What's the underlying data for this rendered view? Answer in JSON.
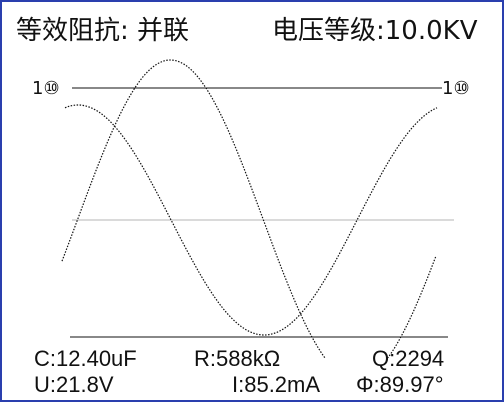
{
  "header": {
    "equivalent_impedance": "等效阻抗: 并联",
    "voltage_level": "电压等级:10.0KV"
  },
  "plot": {
    "left_scale_label": "1⑩",
    "right_scale_label": "1⑩"
  },
  "readout": {
    "capacitance": "C:12.40uF",
    "resistance": "R:588kΩ",
    "quality": "Q:2294",
    "voltage": "U:21.8V",
    "current": "I:85.2mA",
    "phase": "Φ:89.97°"
  },
  "colors": {
    "border": "#2a3fae",
    "trace": "#111111",
    "center_line": "#b5b5b5",
    "background": "#ffffff"
  }
}
